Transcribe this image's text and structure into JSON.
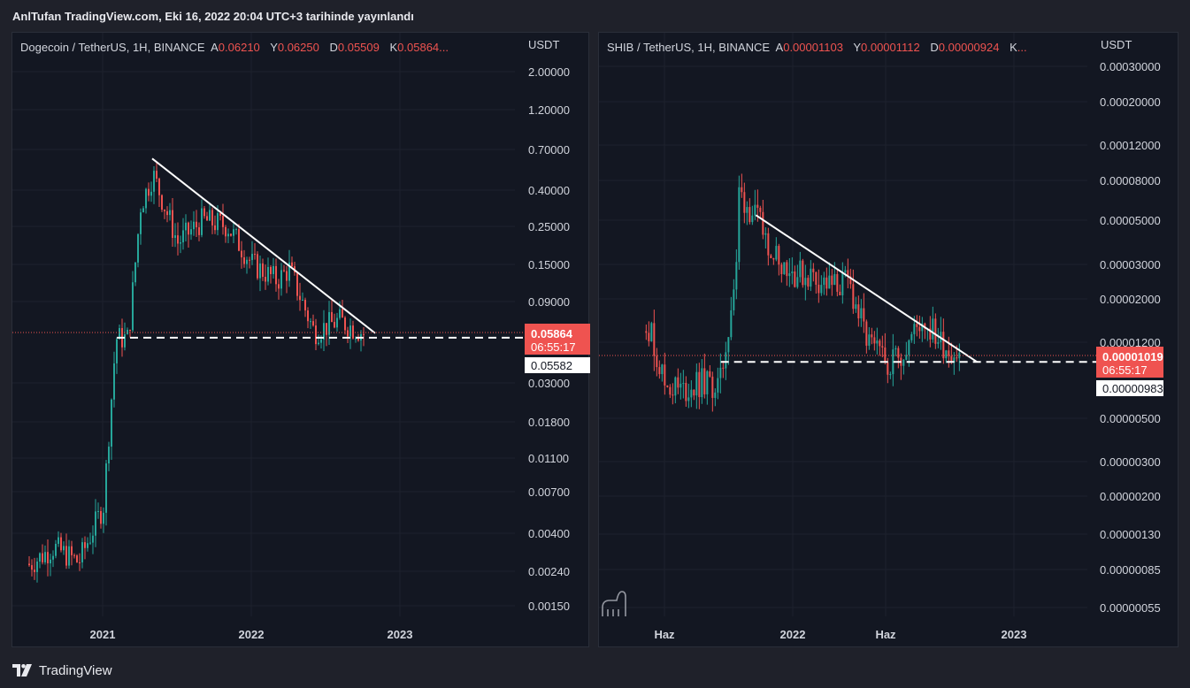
{
  "header": {
    "author_line": "AnlTufan TradingView.com, Eki 16, 2022 20:04 UTC+3 tarihinde yayınlandı"
  },
  "footer": {
    "brand": "TradingView",
    "logo_icon": "tradingview-logo-icon"
  },
  "colors": {
    "up": "#26a69a",
    "down": "#ef5350",
    "trendline": "#ffffff",
    "price_label_bg": "#ef5350"
  },
  "watermark_icon": "dinosaur-watermark-icon",
  "chart_data": [
    {
      "type": "candlestick",
      "symbol": "Dogecoin / TetherUS",
      "interval": "1H",
      "exchange": "BINANCE",
      "legend": [
        {
          "key": "A",
          "value": "0.06210"
        },
        {
          "key": "Y",
          "value": "0.06250"
        },
        {
          "key": "D",
          "value": "0.05509"
        },
        {
          "key": "K",
          "value": "0.05864..."
        }
      ],
      "currency": "USDT",
      "y_scale": "log",
      "y_ticks": [
        "2.00000",
        "1.20000",
        "0.70000",
        "0.40000",
        "0.25000",
        "0.15000",
        "0.09000",
        "0.03000",
        "0.01800",
        "0.01100",
        "0.00700",
        "0.00400",
        "0.00240",
        "0.00150"
      ],
      "x_ticks": [
        "2021",
        "2022",
        "2023"
      ],
      "last_price": "0.05864",
      "countdown": "06:55:17",
      "marker_price": "0.05582",
      "trendline": {
        "from": {
          "x": "2021-05",
          "y": 0.62
        },
        "to": {
          "x": "2022-11",
          "y": 0.059
        }
      },
      "support_line": 0.0555,
      "price_path": [
        {
          "x": "2020-07",
          "y": 0.0026
        },
        {
          "x": "2020-09",
          "y": 0.0033
        },
        {
          "x": "2020-11",
          "y": 0.0027
        },
        {
          "x": "2021-01",
          "y": 0.0058
        },
        {
          "x": "2021-02",
          "y": 0.055
        },
        {
          "x": "2021-03",
          "y": 0.055
        },
        {
          "x": "2021-04",
          "y": 0.33
        },
        {
          "x": "2021-05",
          "y": 0.5
        },
        {
          "x": "2021-07",
          "y": 0.2
        },
        {
          "x": "2021-09",
          "y": 0.27
        },
        {
          "x": "2021-11",
          "y": 0.25
        },
        {
          "x": "2022-01",
          "y": 0.15
        },
        {
          "x": "2022-03",
          "y": 0.12
        },
        {
          "x": "2022-04",
          "y": 0.14
        },
        {
          "x": "2022-06",
          "y": 0.06
        },
        {
          "x": "2022-08",
          "y": 0.07
        },
        {
          "x": "2022-10",
          "y": 0.059
        }
      ]
    },
    {
      "type": "candlestick",
      "symbol": "SHIB / TetherUS",
      "interval": "1H",
      "exchange": "BINANCE",
      "legend": [
        {
          "key": "A",
          "value": "0.00001103"
        },
        {
          "key": "Y",
          "value": "0.00001112"
        },
        {
          "key": "D",
          "value": "0.00000924"
        },
        {
          "key": "K",
          "value": "..."
        }
      ],
      "currency": "USDT",
      "y_scale": "log",
      "y_ticks": [
        "0.00030000",
        "0.00020000",
        "0.00012000",
        "0.00008000",
        "0.00005000",
        "0.00003000",
        "0.00002000",
        "0.00001200",
        "0.00000500",
        "0.00000300",
        "0.00000200",
        "0.00000130",
        "0.00000085",
        "0.00000055"
      ],
      "x_ticks": [
        "Haz",
        "2022",
        "Haz",
        "2023"
      ],
      "last_price": "0.00001019",
      "countdown": "06:55:17",
      "marker_price": "0.00000983",
      "trendline": {
        "from": {
          "x": "2021-11",
          "y": 5.3e-05
        },
        "to": {
          "x": "2022-11",
          "y": 9.6e-06
        }
      },
      "support_line": 9.6e-06,
      "price_path": [
        {
          "x": "2021-05",
          "y": 1.6e-05
        },
        {
          "x": "2021-06",
          "y": 7.5e-06
        },
        {
          "x": "2021-07",
          "y": 6.8e-06
        },
        {
          "x": "2021-08",
          "y": 7.5e-06
        },
        {
          "x": "2021-09",
          "y": 7.2e-06
        },
        {
          "x": "2021-10",
          "y": 3.3e-05
        },
        {
          "x": "2021-10",
          "y": 7e-05
        },
        {
          "x": "2021-11",
          "y": 5e-05
        },
        {
          "x": "2021-12",
          "y": 3.4e-05
        },
        {
          "x": "2022-01",
          "y": 2.7e-05
        },
        {
          "x": "2022-02",
          "y": 2.6e-05
        },
        {
          "x": "2022-03",
          "y": 2.3e-05
        },
        {
          "x": "2022-04",
          "y": 2.4e-05
        },
        {
          "x": "2022-05",
          "y": 1.2e-05
        },
        {
          "x": "2022-06",
          "y": 9.5e-06
        },
        {
          "x": "2022-07",
          "y": 1.1e-05
        },
        {
          "x": "2022-08",
          "y": 1.6e-05
        },
        {
          "x": "2022-09",
          "y": 1.2e-05
        },
        {
          "x": "2022-10",
          "y": 1.02e-05
        }
      ]
    }
  ]
}
